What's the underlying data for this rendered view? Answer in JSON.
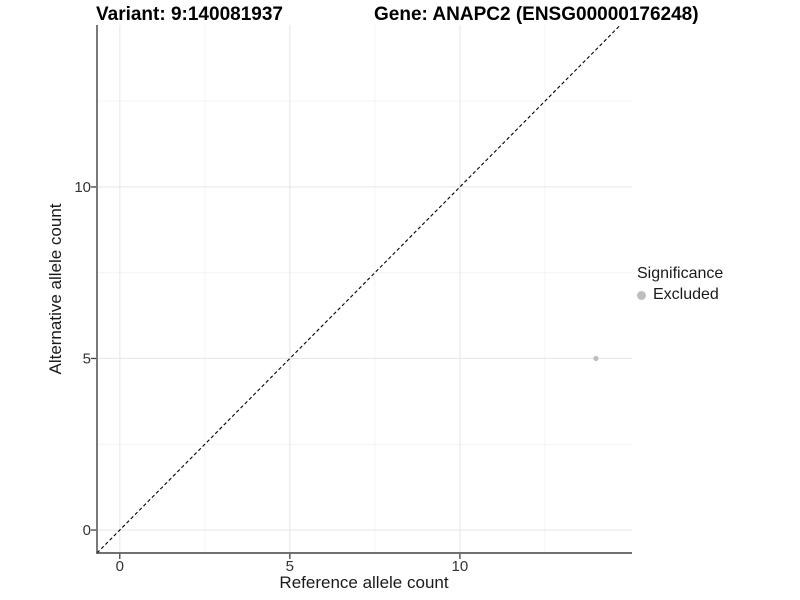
{
  "chart_data": {
    "type": "scatter",
    "titles": {
      "left": "Variant: 9:140081937",
      "right": "Gene: ANAPC2 (ENSG00000176248)"
    },
    "xlabel": "Reference allele count",
    "ylabel": "Alternative allele count",
    "xlim": [
      -0.67,
      15.06
    ],
    "ylim": [
      -0.67,
      14.72
    ],
    "x_ticks": {
      "major": [
        0,
        5,
        10
      ],
      "minor": [
        2.5,
        7.5,
        12.5
      ]
    },
    "y_ticks": {
      "major": [
        0,
        5,
        10
      ],
      "minor": [
        2.5,
        7.5,
        12.5
      ]
    },
    "grid": {
      "show": true,
      "major_color": "#e8e8e8",
      "minor_color": "#f4f4f4"
    },
    "reference_line": {
      "type": "identity",
      "style": "dashed",
      "color": "#000000"
    },
    "series": [
      {
        "name": "Excluded",
        "color": "#bebebe",
        "points": [
          {
            "x": 14,
            "y": 5
          }
        ]
      }
    ],
    "legend": {
      "title": "Significance",
      "position": "right",
      "items": [
        {
          "label": "Excluded",
          "color": "#bebebe"
        }
      ]
    },
    "axis": {
      "line_color": "#404040",
      "tick_color": "#404040",
      "text_color": "#333333"
    }
  }
}
